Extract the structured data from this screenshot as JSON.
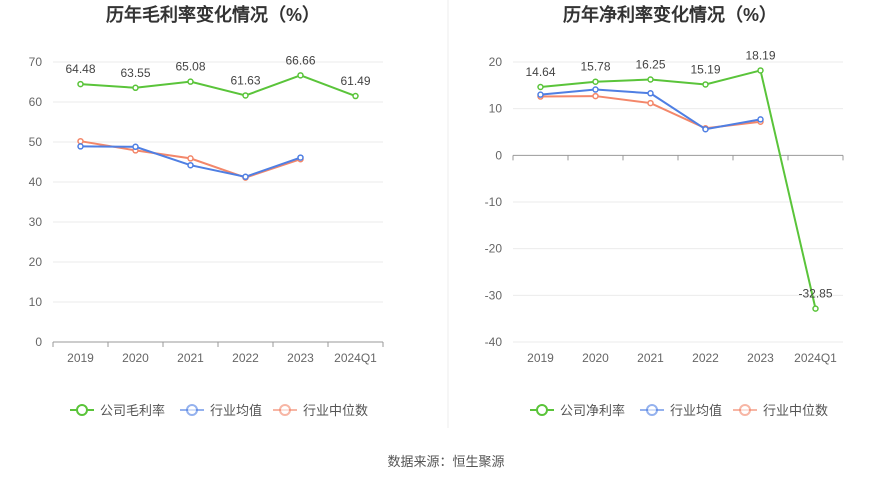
{
  "source": "数据来源：恒生聚源",
  "colors": {
    "company": "#5ac43a",
    "avg": "#4f7fe3",
    "median": "#f3876a"
  },
  "chart_data": [
    {
      "type": "line",
      "title": "历年毛利率变化情况（%）",
      "categories": [
        "2019",
        "2020",
        "2021",
        "2022",
        "2023",
        "2024Q1"
      ],
      "ylim": [
        0,
        70
      ],
      "yticks": [
        0,
        10,
        20,
        30,
        40,
        50,
        60,
        70
      ],
      "grid": true,
      "legend": "bottom",
      "series": [
        {
          "name": "公司毛利率",
          "values": [
            64.48,
            63.55,
            65.08,
            61.63,
            66.66,
            61.49
          ],
          "labels": [
            "64.48",
            "63.55",
            "65.08",
            "61.63",
            "66.66",
            "61.49"
          ]
        },
        {
          "name": "行业均值",
          "values": [
            48.9,
            48.8,
            44.2,
            41.3,
            46.1,
            null
          ]
        },
        {
          "name": "行业中位数",
          "values": [
            50.2,
            47.9,
            45.9,
            41.1,
            45.7,
            null
          ]
        }
      ]
    },
    {
      "type": "line",
      "title": "历年净利率变化情况（%）",
      "categories": [
        "2019",
        "2020",
        "2021",
        "2022",
        "2023",
        "2024Q1"
      ],
      "ylim": [
        -40,
        20
      ],
      "yticks": [
        -40,
        -30,
        -20,
        -10,
        0,
        10,
        20
      ],
      "grid": true,
      "legend": "bottom",
      "series": [
        {
          "name": "公司净利率",
          "values": [
            14.64,
            15.78,
            16.25,
            15.19,
            18.19,
            -32.85
          ],
          "labels": [
            "14.64",
            "15.78",
            "16.25",
            "15.19",
            "18.19",
            "-32.85"
          ]
        },
        {
          "name": "行业均值",
          "values": [
            13.0,
            14.1,
            13.3,
            5.6,
            7.7,
            null
          ]
        },
        {
          "name": "行业中位数",
          "values": [
            12.6,
            12.7,
            11.2,
            5.8,
            7.2,
            null
          ]
        }
      ]
    }
  ]
}
